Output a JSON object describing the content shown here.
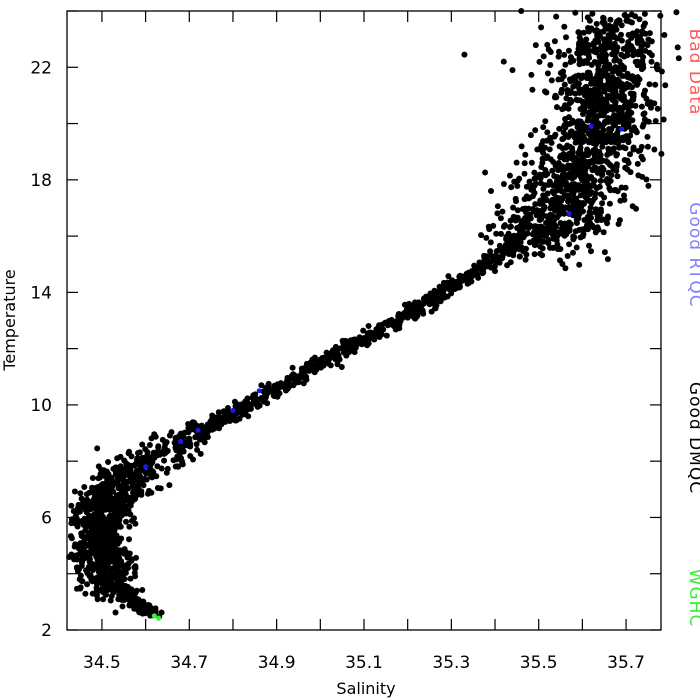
{
  "chart_data": {
    "type": "scatter",
    "xlabel": "Salinity",
    "ylabel": "Temperature",
    "xlim": [
      34.42,
      35.78
    ],
    "ylim": [
      2,
      24
    ],
    "x_ticks": [
      "34.5",
      "34.7",
      "34.9",
      "35.1",
      "35.3",
      "35.5",
      "35.7"
    ],
    "y_ticks": [
      "2",
      "6",
      "10",
      "14",
      "18",
      "22"
    ],
    "grid": false,
    "legend_position": "right",
    "legend": [
      {
        "label": "Bad Data",
        "color": "#ff5a5a"
      },
      {
        "label": "Good RTQC",
        "color": "#8080ff"
      },
      {
        "label": "Good DMQC",
        "color": "#000000"
      },
      {
        "label": "WGHC",
        "color": "#33ee33"
      }
    ],
    "series": [
      {
        "name": "Good DMQC",
        "color": "#000000",
        "curve": [
          {
            "x": 34.62,
            "y": 2.55
          },
          {
            "x": 34.58,
            "y": 2.9
          },
          {
            "x": 34.54,
            "y": 3.5
          },
          {
            "x": 34.5,
            "y": 4.3
          },
          {
            "x": 34.49,
            "y": 5.2
          },
          {
            "x": 34.5,
            "y": 6.2
          },
          {
            "x": 34.53,
            "y": 7.0
          },
          {
            "x": 34.58,
            "y": 7.7
          },
          {
            "x": 34.65,
            "y": 8.4
          },
          {
            "x": 34.72,
            "y": 9.0
          },
          {
            "x": 34.8,
            "y": 9.7
          },
          {
            "x": 34.88,
            "y": 10.4
          },
          {
            "x": 34.96,
            "y": 11.1
          },
          {
            "x": 35.05,
            "y": 11.9
          },
          {
            "x": 35.13,
            "y": 12.6
          },
          {
            "x": 35.22,
            "y": 13.4
          },
          {
            "x": 35.3,
            "y": 14.2
          },
          {
            "x": 35.38,
            "y": 15.0
          },
          {
            "x": 35.46,
            "y": 15.8
          },
          {
            "x": 35.52,
            "y": 16.6
          },
          {
            "x": 35.57,
            "y": 17.6
          },
          {
            "x": 35.61,
            "y": 18.7
          },
          {
            "x": 35.64,
            "y": 19.8
          },
          {
            "x": 35.65,
            "y": 21.0
          },
          {
            "x": 35.66,
            "y": 22.3
          },
          {
            "x": 35.67,
            "y": 23.5
          }
        ],
        "extra_points": [
          {
            "x": 35.33,
            "y": 22.45
          },
          {
            "x": 35.42,
            "y": 22.2
          },
          {
            "x": 35.44,
            "y": 21.9
          },
          {
            "x": 35.46,
            "y": 24.0
          },
          {
            "x": 35.54,
            "y": 23.8
          },
          {
            "x": 35.77,
            "y": 22.0
          },
          {
            "x": 34.43,
            "y": 5.8
          },
          {
            "x": 34.46,
            "y": 5.2
          }
        ]
      },
      {
        "name": "Good RTQC",
        "color": "#1a1aee",
        "points": [
          {
            "x": 34.6,
            "y": 7.8
          },
          {
            "x": 34.68,
            "y": 8.7
          },
          {
            "x": 34.72,
            "y": 9.1
          },
          {
            "x": 34.8,
            "y": 9.8
          },
          {
            "x": 34.86,
            "y": 10.5
          },
          {
            "x": 35.62,
            "y": 19.9
          },
          {
            "x": 35.69,
            "y": 19.8
          },
          {
            "x": 35.57,
            "y": 16.8
          }
        ]
      },
      {
        "name": "WGHC",
        "color": "#33ee33",
        "points": [
          {
            "x": 34.62,
            "y": 2.5
          },
          {
            "x": 34.63,
            "y": 2.42
          }
        ]
      }
    ]
  }
}
